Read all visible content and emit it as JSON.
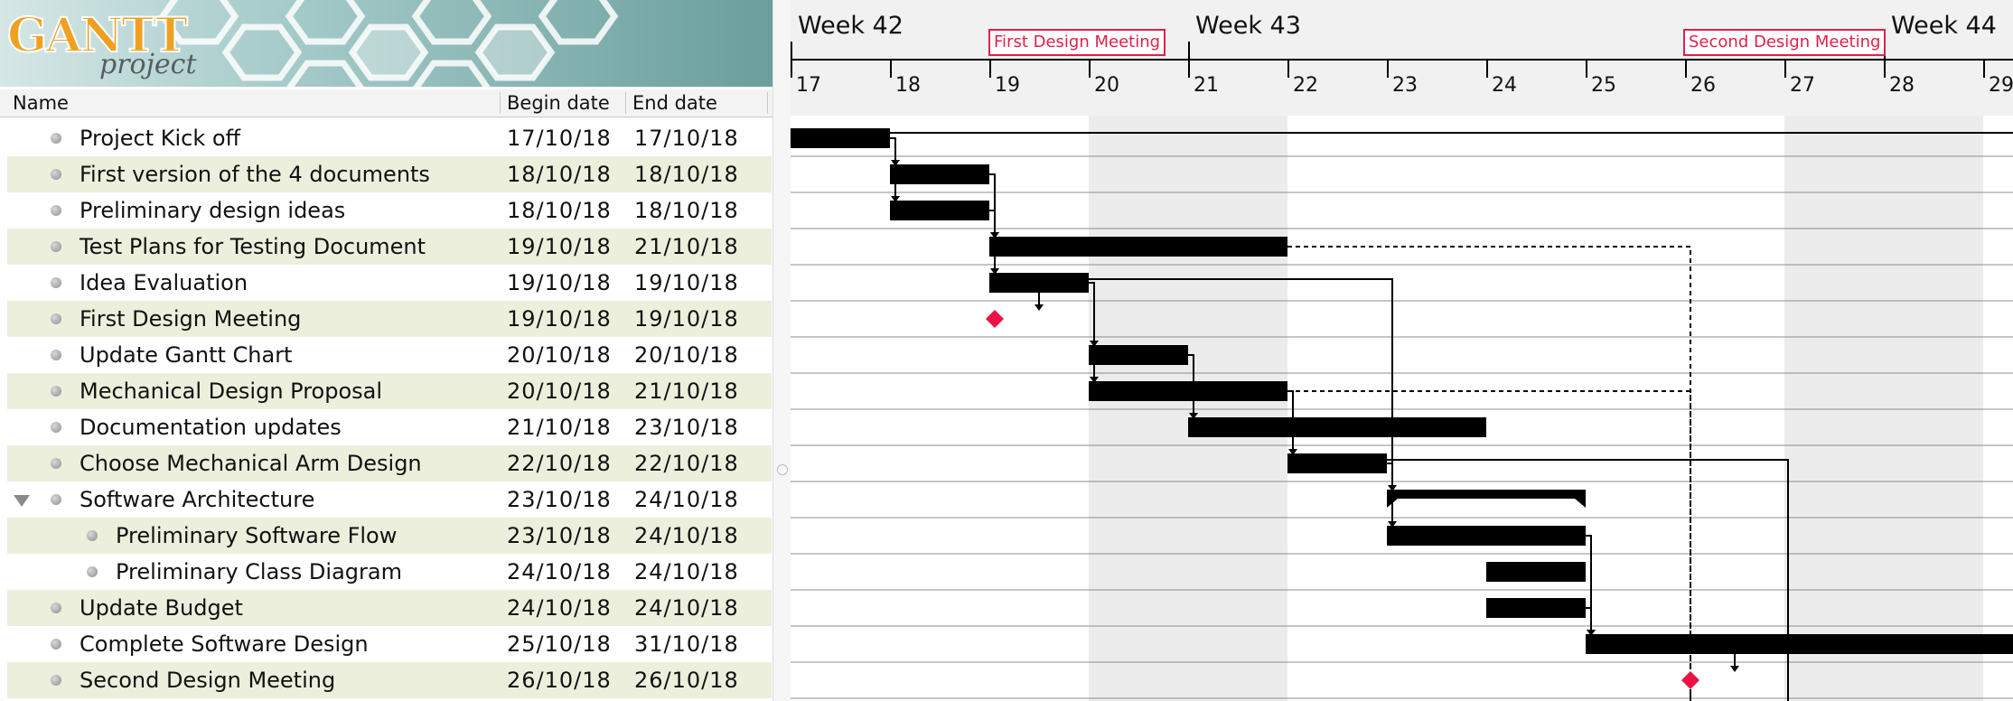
{
  "app": {
    "logo_main": "GANTT",
    "logo_sub": "project"
  },
  "columns": {
    "name": "Name",
    "begin": "Begin date",
    "end": "End date"
  },
  "tasks": [
    {
      "name": "Project Kick off",
      "begin": "17/10/18",
      "end": "17/10/18",
      "indent": 0
    },
    {
      "name": "First version of the 4 documents",
      "begin": "18/10/18",
      "end": "18/10/18",
      "indent": 0
    },
    {
      "name": "Preliminary design ideas",
      "begin": "18/10/18",
      "end": "18/10/18",
      "indent": 0
    },
    {
      "name": "Test Plans for Testing Document",
      "begin": "19/10/18",
      "end": "21/10/18",
      "indent": 0
    },
    {
      "name": "Idea Evaluation",
      "begin": "19/10/18",
      "end": "19/10/18",
      "indent": 0
    },
    {
      "name": "First Design Meeting",
      "begin": "19/10/18",
      "end": "19/10/18",
      "indent": 0
    },
    {
      "name": "Update Gantt Chart",
      "begin": "20/10/18",
      "end": "20/10/18",
      "indent": 0
    },
    {
      "name": "Mechanical Design Proposal",
      "begin": "20/10/18",
      "end": "21/10/18",
      "indent": 0
    },
    {
      "name": "Documentation updates",
      "begin": "21/10/18",
      "end": "23/10/18",
      "indent": 0
    },
    {
      "name": "Choose Mechanical Arm Design",
      "begin": "22/10/18",
      "end": "22/10/18",
      "indent": 0
    },
    {
      "name": "Software Architecture",
      "begin": "23/10/18",
      "end": "24/10/18",
      "indent": 0,
      "expanded": true
    },
    {
      "name": "Preliminary Software Flow",
      "begin": "23/10/18",
      "end": "24/10/18",
      "indent": 1
    },
    {
      "name": "Preliminary Class Diagram",
      "begin": "24/10/18",
      "end": "24/10/18",
      "indent": 1
    },
    {
      "name": "Update Budget",
      "begin": "24/10/18",
      "end": "24/10/18",
      "indent": 0
    },
    {
      "name": "Complete Software Design",
      "begin": "25/10/18",
      "end": "31/10/18",
      "indent": 0
    },
    {
      "name": "Second Design Meeting",
      "begin": "26/10/18",
      "end": "26/10/18",
      "indent": 0
    }
  ],
  "timeline": {
    "weeks": [
      "Week 42",
      "Week 43",
      "Week 44"
    ],
    "days": [
      "17",
      "18",
      "19",
      "20",
      "21",
      "22",
      "23",
      "24",
      "25",
      "26",
      "27",
      "28",
      "29"
    ],
    "milestone_labels": [
      "First Design Meeting",
      "Second Design Meeting"
    ]
  },
  "colors": {
    "bar": "#000000",
    "milestone": "#ee1144",
    "weekend_shade": "#ececec",
    "row_alt": "#ecefdc"
  }
}
